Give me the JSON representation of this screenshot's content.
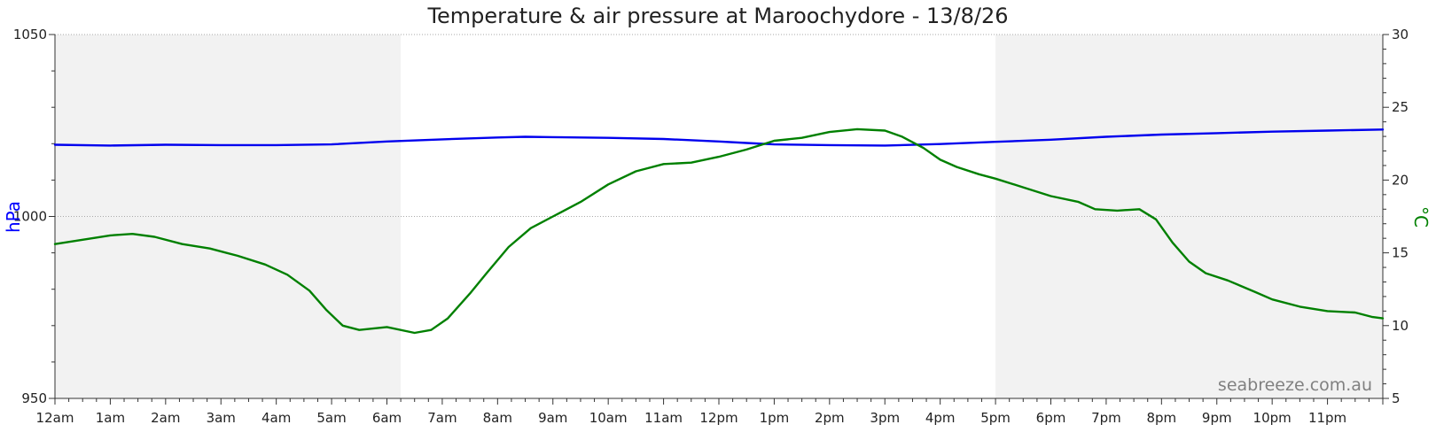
{
  "chart_data": {
    "type": "line",
    "title": "Temperature & air pressure at Maroochydore - 13/8/26",
    "watermark": "seabreeze.com.au",
    "x_unit": "hours",
    "x_ticks": [
      "12am",
      "1am",
      "2am",
      "3am",
      "4am",
      "5am",
      "6am",
      "7am",
      "8am",
      "9am",
      "10am",
      "11am",
      "12pm",
      "1pm",
      "2pm",
      "3pm",
      "4pm",
      "5pm",
      "6pm",
      "7pm",
      "8pm",
      "9pm",
      "10pm",
      "11pm"
    ],
    "x_range": [
      0,
      24
    ],
    "shaded_periods": [
      [
        0,
        6.25
      ],
      [
        17,
        24
      ]
    ],
    "left_axis": {
      "label": "hPa",
      "color": "#0000ff",
      "range": [
        950,
        1050
      ],
      "ticks": [
        "950",
        "1000",
        "1050"
      ]
    },
    "right_axis": {
      "label": "°C",
      "color": "#008000",
      "range": [
        5,
        30
      ],
      "ticks": [
        "5",
        "10",
        "15",
        "20",
        "25",
        "30"
      ]
    },
    "grid": true,
    "series": [
      {
        "axis": "left",
        "color": "#0000ee",
        "points": [
          [
            0,
            1019.7
          ],
          [
            1,
            1019.5
          ],
          [
            2,
            1019.7
          ],
          [
            3,
            1019.6
          ],
          [
            4,
            1019.6
          ],
          [
            5,
            1019.8
          ],
          [
            6,
            1020.6
          ],
          [
            7,
            1021.2
          ],
          [
            8,
            1021.7
          ],
          [
            8.5,
            1021.9
          ],
          [
            9,
            1021.8
          ],
          [
            10,
            1021.6
          ],
          [
            11,
            1021.3
          ],
          [
            12,
            1020.6
          ],
          [
            12.5,
            1020.2
          ],
          [
            13,
            1019.8
          ],
          [
            14,
            1019.6
          ],
          [
            15,
            1019.5
          ],
          [
            16,
            1019.9
          ],
          [
            17,
            1020.5
          ],
          [
            18,
            1021.1
          ],
          [
            19,
            1021.9
          ],
          [
            20,
            1022.5
          ],
          [
            21,
            1022.9
          ],
          [
            22,
            1023.3
          ],
          [
            23,
            1023.6
          ],
          [
            24,
            1023.9
          ]
        ]
      },
      {
        "axis": "right",
        "color": "#008000",
        "points": [
          [
            0,
            15.6
          ],
          [
            0.5,
            15.9
          ],
          [
            1,
            16.2
          ],
          [
            1.4,
            16.3
          ],
          [
            1.8,
            16.1
          ],
          [
            2.3,
            15.6
          ],
          [
            2.8,
            15.3
          ],
          [
            3.3,
            14.8
          ],
          [
            3.8,
            14.2
          ],
          [
            4.2,
            13.5
          ],
          [
            4.6,
            12.4
          ],
          [
            4.9,
            11.1
          ],
          [
            5.2,
            10.0
          ],
          [
            5.5,
            9.7
          ],
          [
            6,
            9.9
          ],
          [
            6.5,
            9.5
          ],
          [
            6.8,
            9.7
          ],
          [
            7.1,
            10.5
          ],
          [
            7.5,
            12.2
          ],
          [
            7.8,
            13.6
          ],
          [
            8.2,
            15.4
          ],
          [
            8.6,
            16.7
          ],
          [
            9,
            17.5
          ],
          [
            9.5,
            18.5
          ],
          [
            10,
            19.7
          ],
          [
            10.5,
            20.6
          ],
          [
            11,
            21.1
          ],
          [
            11.5,
            21.2
          ],
          [
            12,
            21.6
          ],
          [
            12.5,
            22.1
          ],
          [
            13,
            22.7
          ],
          [
            13.5,
            22.9
          ],
          [
            14,
            23.3
          ],
          [
            14.5,
            23.5
          ],
          [
            15,
            23.4
          ],
          [
            15.3,
            23.0
          ],
          [
            15.7,
            22.2
          ],
          [
            16,
            21.4
          ],
          [
            16.3,
            20.9
          ],
          [
            16.7,
            20.4
          ],
          [
            17,
            20.1
          ],
          [
            17.5,
            19.5
          ],
          [
            18,
            18.9
          ],
          [
            18.5,
            18.5
          ],
          [
            18.8,
            18.0
          ],
          [
            19.2,
            17.9
          ],
          [
            19.6,
            18.0
          ],
          [
            19.9,
            17.3
          ],
          [
            20.2,
            15.7
          ],
          [
            20.5,
            14.4
          ],
          [
            20.8,
            13.6
          ],
          [
            21.2,
            13.1
          ],
          [
            21.7,
            12.3
          ],
          [
            22,
            11.8
          ],
          [
            22.5,
            11.3
          ],
          [
            23,
            11.0
          ],
          [
            23.5,
            10.9
          ],
          [
            23.8,
            10.6
          ],
          [
            24,
            10.5
          ]
        ]
      }
    ]
  }
}
